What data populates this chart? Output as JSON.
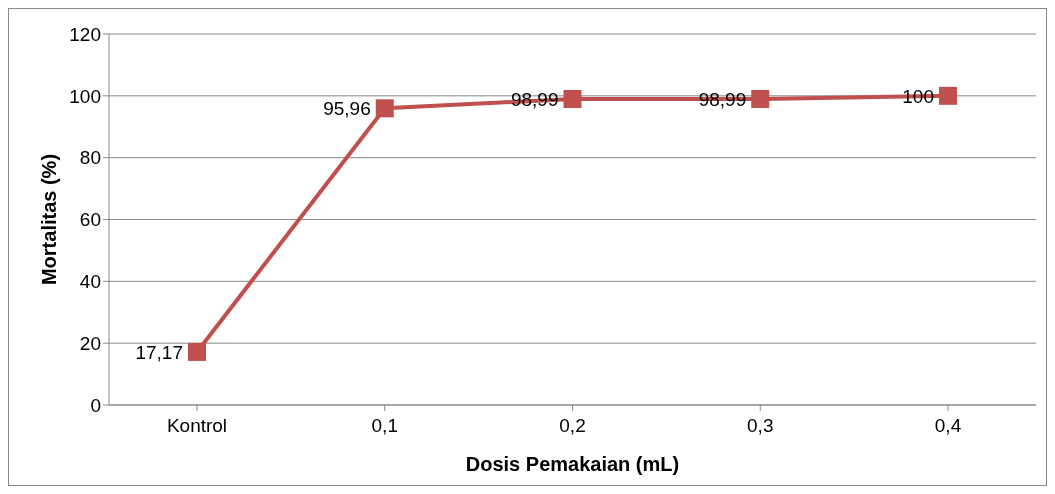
{
  "chart_data": {
    "type": "line",
    "xlabel": "Dosis Pemakaian (mL)",
    "ylabel": "Mortalitas (%)",
    "categories": [
      "Kontrol",
      "0,1",
      "0,2",
      "0,3",
      "0,4"
    ],
    "series": [
      {
        "color": "#c0504d",
        "values": [
          17.17,
          95.96,
          98.99,
          98.99,
          100
        ],
        "value_labels": [
          "17,17",
          "95,96",
          "98,99",
          "98,99",
          "100"
        ]
      }
    ],
    "ylim": [
      0,
      120
    ],
    "yticks": [
      0,
      20,
      40,
      60,
      80,
      100,
      120
    ],
    "grid": "y",
    "marker": "square"
  }
}
